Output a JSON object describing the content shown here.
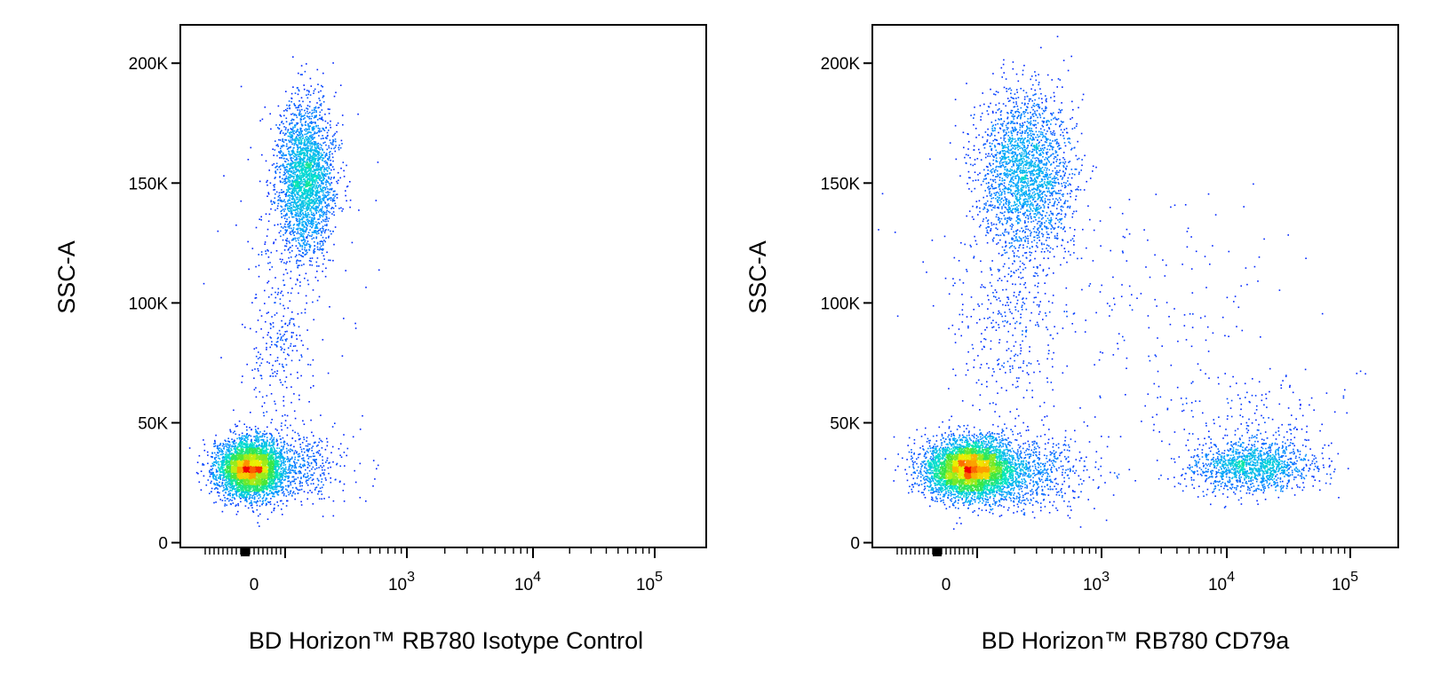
{
  "chart_data": [
    {
      "type": "scatter",
      "title": "",
      "xlabel": "BD Horizon™ RB780 Isotype Control",
      "ylabel": "SSC-A",
      "x_scale": "biexponential",
      "x_ticks": [
        {
          "value": 0,
          "label": "0"
        },
        {
          "value": 1000,
          "label": "10",
          "sup": "3"
        },
        {
          "value": 10000,
          "label": "10",
          "sup": "4"
        },
        {
          "value": 100000,
          "label": "10",
          "sup": "5"
        }
      ],
      "y_ticks": [
        {
          "value": 0,
          "label": "0"
        },
        {
          "value": 50000,
          "label": "50K"
        },
        {
          "value": 100000,
          "label": "100K"
        },
        {
          "value": 150000,
          "label": "150K"
        },
        {
          "value": 200000,
          "label": "200K"
        }
      ],
      "ylim": [
        -2000,
        216000
      ],
      "populations": [
        {
          "x_center": 0,
          "y_center": 30000,
          "density": "high",
          "spread_x": "narrow",
          "spread_y": "medium"
        },
        {
          "x_center": 180,
          "y_center": 150000,
          "density": "medium",
          "spread_x": "narrow",
          "spread_y": "wide"
        }
      ],
      "grid": false,
      "legend": "none"
    },
    {
      "type": "scatter",
      "title": "",
      "xlabel": "BD Horizon™ RB780 CD79a",
      "ylabel": "SSC-A",
      "x_scale": "biexponential",
      "x_ticks": [
        {
          "value": 0,
          "label": "0"
        },
        {
          "value": 1000,
          "label": "10",
          "sup": "3"
        },
        {
          "value": 10000,
          "label": "10",
          "sup": "4"
        },
        {
          "value": 100000,
          "label": "10",
          "sup": "5"
        }
      ],
      "y_ticks": [
        {
          "value": 0,
          "label": "0"
        },
        {
          "value": 50000,
          "label": "50K"
        },
        {
          "value": 100000,
          "label": "100K"
        },
        {
          "value": 150000,
          "label": "150K"
        },
        {
          "value": 200000,
          "label": "200K"
        }
      ],
      "ylim": [
        -2000,
        216000
      ],
      "populations": [
        {
          "x_center": 0,
          "y_center": 30000,
          "density": "high",
          "spread_x": "medium",
          "spread_y": "medium"
        },
        {
          "x_center": 250,
          "y_center": 150000,
          "density": "medium",
          "spread_x": "medium",
          "spread_y": "wide"
        },
        {
          "x_center": 15000,
          "y_center": 32000,
          "density": "medium",
          "spread_x": "wide",
          "spread_y": "narrow"
        }
      ],
      "grid": false,
      "legend": "none"
    }
  ]
}
